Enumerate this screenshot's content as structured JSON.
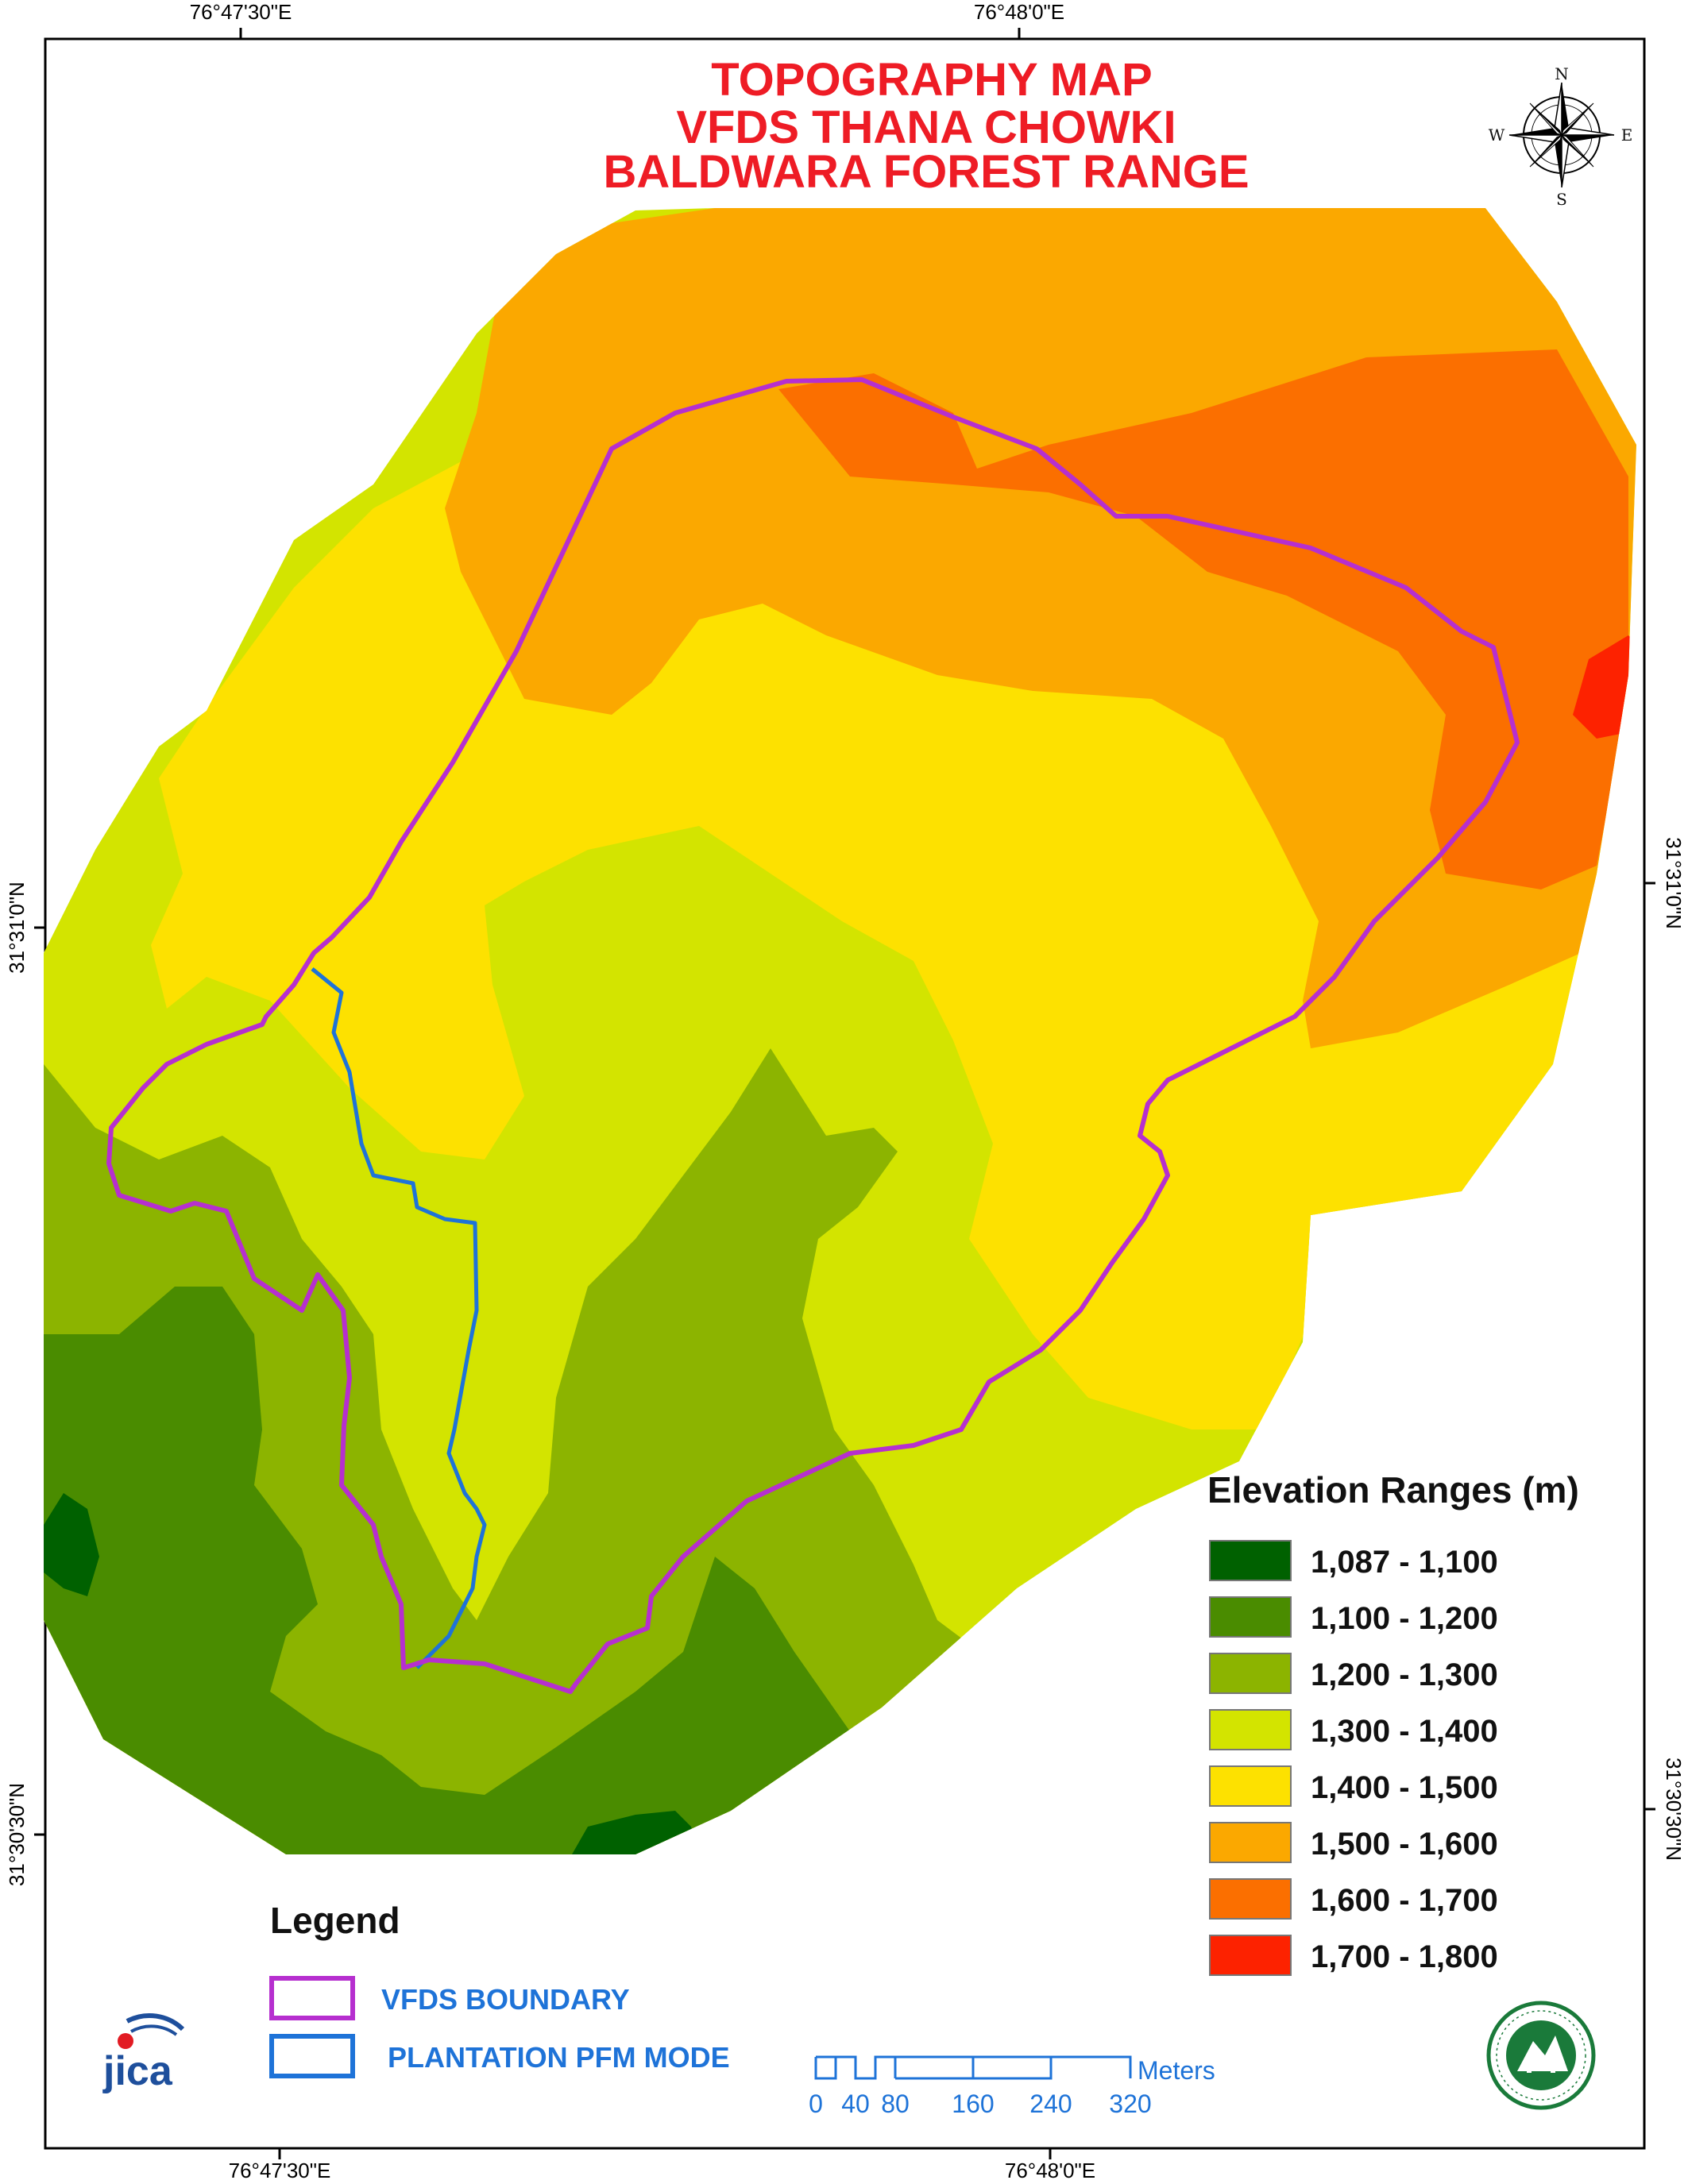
{
  "title": {
    "line1": "TOPOGRAPHY MAP",
    "line2": "VFDS THANA CHOWKI",
    "line3": "BALDWARA FOREST RANGE"
  },
  "graticule": {
    "top_left": "76°47'30\"E",
    "top_right": "76°48'0\"E",
    "bottom_left": "76°47'30\"E",
    "bottom_right": "76°48'0\"E",
    "left_upper": "31°31'0\"N",
    "left_lower": "31°30'30\"N",
    "right_upper": "31°31'0\"N",
    "right_lower": "31°30'30\"N"
  },
  "compass": {
    "n": "N",
    "s": "S",
    "e": "E",
    "w": "W"
  },
  "elevation_legend": {
    "title": "Elevation Ranges (m)",
    "classes": [
      {
        "label": "1,087 - 1,100",
        "color": "#006100"
      },
      {
        "label": "1,100 - 1,200",
        "color": "#4a8c00"
      },
      {
        "label": "1,200 - 1,300",
        "color": "#8cb400"
      },
      {
        "label": "1,300 - 1,400",
        "color": "#d3e400"
      },
      {
        "label": "1,400 - 1,500",
        "color": "#fde100"
      },
      {
        "label": "1,500 - 1,600",
        "color": "#fba800"
      },
      {
        "label": "1,600 - 1,700",
        "color": "#fb6f00"
      },
      {
        "label": "1,700 - 1,800",
        "color": "#fd2200"
      }
    ]
  },
  "legend": {
    "title": "Legend",
    "items": [
      {
        "label": "VFDS BOUNDARY",
        "color": "#b62fcf"
      },
      {
        "label": "PLANTATION PFM MODE",
        "color": "#1e73d8"
      }
    ]
  },
  "scale_bar": {
    "unit": "Meters",
    "ticks": [
      "0",
      "40",
      "80",
      "160",
      "240",
      "320"
    ]
  },
  "logos": {
    "jica": "JICA",
    "seal": "HP Forest Department seal"
  }
}
